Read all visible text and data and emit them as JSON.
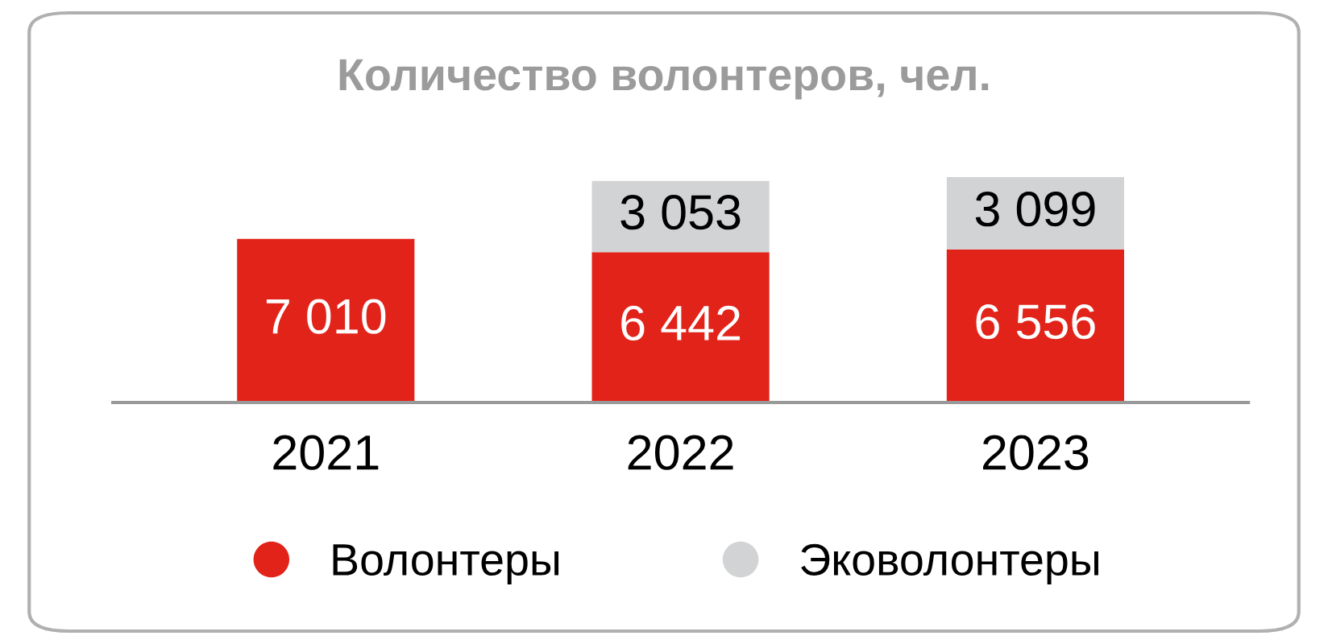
{
  "chart_data": {
    "type": "bar",
    "title": "Количество волонтеров, чел.",
    "categories": [
      "2021",
      "2022",
      "2023"
    ],
    "stacked": true,
    "legend": "bottom",
    "series": [
      {
        "name": "Волонтеры",
        "color": "#e2231a",
        "values": [
          7010,
          6442,
          6556
        ],
        "value_labels": [
          "7 010",
          "6 442",
          "6 556"
        ]
      },
      {
        "name": "Эковолонтеры",
        "color": "#d1d3d4",
        "values": [
          null,
          3053,
          3099
        ],
        "value_labels": [
          null,
          "3 053",
          "3 099"
        ]
      }
    ]
  }
}
